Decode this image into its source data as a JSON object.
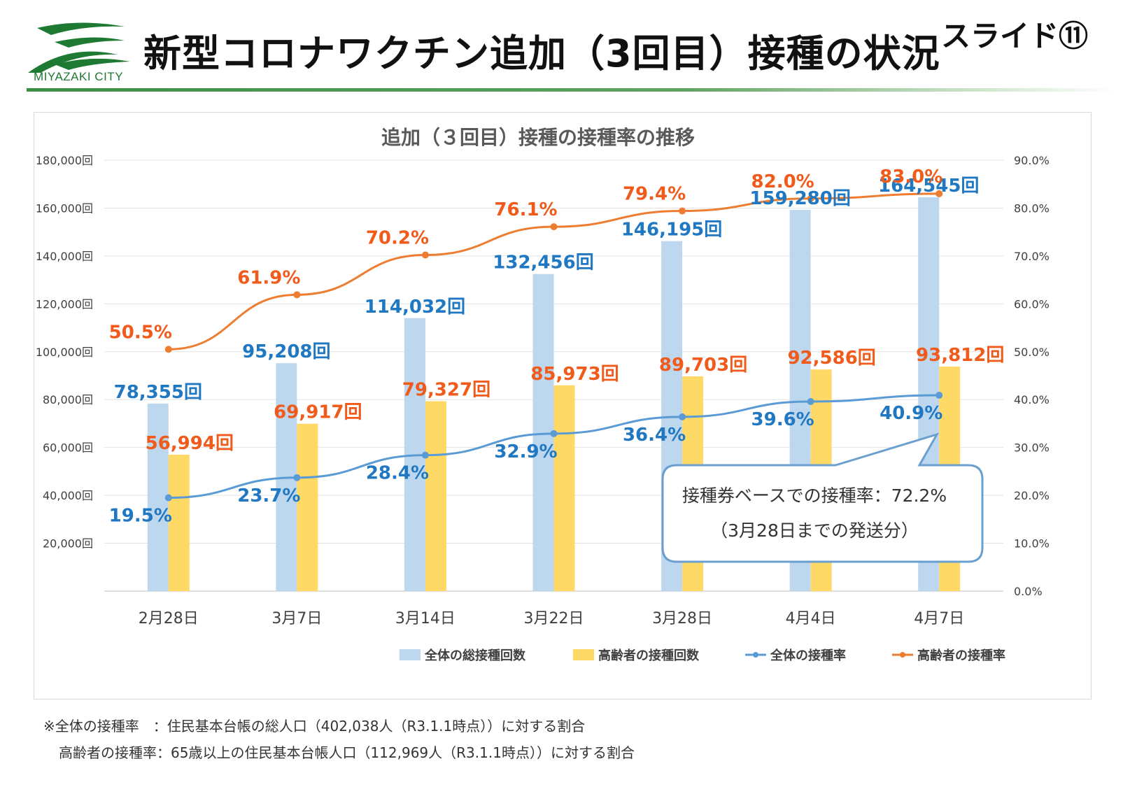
{
  "header": {
    "logo_text": "MIYAZAKI CITY",
    "title": "新型コロナワクチン追加（3回目）接種の状況",
    "slide_number": "スライド⑪"
  },
  "colors": {
    "bar_total": "#bdd7ee",
    "bar_elderly": "#ffd966",
    "line_total": "#5b9bd5",
    "line_elderly": "#ed7d31",
    "label_total": "#1f78c1",
    "label_elderly": "#f05a1a",
    "logo_green": "#1e7a32"
  },
  "callout": {
    "line1": "接種券ベースでの接種率：72.2%",
    "line2": "（3月28日までの発送分）"
  },
  "notes": {
    "line1": "※全体の接種率　：住民基本台帳の総人口（402,038人（R3.1.1時点））に対する割合",
    "line2": "高齢者の接種率：65歳以上の住民基本台帳人口（112,969人（R3.1.1時点））に対する割合"
  },
  "chart_data": {
    "type": "bar",
    "title": "追加（３回目）接種の接種率の推移",
    "categories": [
      "2月28日",
      "3月7日",
      "3月14日",
      "3月22日",
      "3月28日",
      "4月4日",
      "4月7日"
    ],
    "left_axis": {
      "min": 0,
      "max": 180000,
      "step": 20000,
      "tick_labels": [
        "",
        "20,000回",
        "40,000回",
        "60,000回",
        "80,000回",
        "100,000回",
        "120,000回",
        "140,000回",
        "160,000回",
        "180,000回"
      ]
    },
    "right_axis": {
      "min": 0,
      "max": 90,
      "step": 10,
      "tick_labels": [
        "0.0%",
        "10.0%",
        "20.0%",
        "30.0%",
        "40.0%",
        "50.0%",
        "60.0%",
        "70.0%",
        "80.0%",
        "90.0%"
      ]
    },
    "series": [
      {
        "name": "全体の総接種回数",
        "kind": "bar",
        "axis": "left",
        "values": [
          78355,
          95208,
          114032,
          132456,
          146195,
          159280,
          164545
        ],
        "labels": [
          "78,355回",
          "95,208回",
          "114,032回",
          "132,456回",
          "146,195回",
          "159,280回",
          "164,545回"
        ]
      },
      {
        "name": "高齢者の接種回数",
        "kind": "bar",
        "axis": "left",
        "values": [
          56994,
          69917,
          79327,
          85973,
          89703,
          92586,
          93812
        ],
        "labels": [
          "56,994回",
          "69,917回",
          "79,327回",
          "85,973回",
          "89,703回",
          "92,586回",
          "93,812回"
        ]
      },
      {
        "name": "全体の接種率",
        "kind": "line",
        "axis": "right",
        "values": [
          19.5,
          23.7,
          28.4,
          32.9,
          36.4,
          39.6,
          40.9
        ],
        "labels": [
          "19.5%",
          "23.7%",
          "28.4%",
          "32.9%",
          "36.4%",
          "39.6%",
          "40.9%"
        ]
      },
      {
        "name": "高齢者の接種率",
        "kind": "line",
        "axis": "right",
        "values": [
          50.5,
          61.9,
          70.2,
          76.1,
          79.4,
          82.0,
          83.0
        ],
        "labels": [
          "50.5%",
          "61.9%",
          "70.2%",
          "76.1%",
          "79.4%",
          "82.0%",
          "83.0%"
        ]
      }
    ],
    "legend_position": "bottom-right",
    "grid": true
  }
}
